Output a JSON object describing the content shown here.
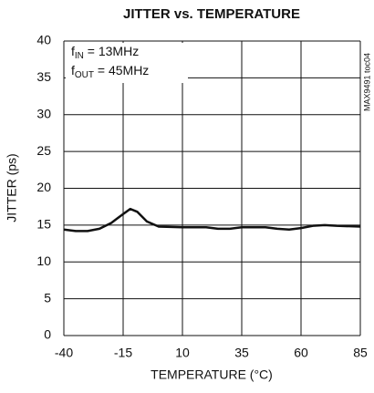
{
  "chart_data": {
    "type": "line",
    "title": "JITTER vs. TEMPERATURE",
    "x_label": "TEMPERATURE (°C)",
    "y_label": "JITTER (ps)",
    "side_label": "MAX9491 toc04",
    "annotations": [
      {
        "text": "f",
        "subscript": "IN",
        "suffix": " = 13MHz"
      },
      {
        "text": "f",
        "subscript": "OUT",
        "suffix": " = 45MHz"
      }
    ],
    "x": [
      -40,
      -35,
      -30,
      -25,
      -20,
      -15,
      -12,
      -9,
      -5,
      0,
      10,
      20,
      25,
      30,
      35,
      45,
      50,
      55,
      60,
      65,
      70,
      75,
      85
    ],
    "series": [
      {
        "name": "jitter",
        "color": "#111111",
        "values": [
          14.4,
          14.2,
          14.2,
          14.5,
          15.3,
          16.5,
          17.2,
          16.8,
          15.5,
          14.8,
          14.7,
          14.7,
          14.5,
          14.5,
          14.7,
          14.7,
          14.5,
          14.4,
          14.6,
          14.9,
          15.0,
          14.9,
          14.8
        ]
      }
    ],
    "xlim": [
      -40,
      85
    ],
    "xticks": [
      -40,
      -15,
      10,
      35,
      60,
      85
    ],
    "ylim": [
      0,
      40
    ],
    "yticks": [
      0,
      5,
      10,
      15,
      20,
      25,
      30,
      35,
      40
    ],
    "grid": true
  }
}
